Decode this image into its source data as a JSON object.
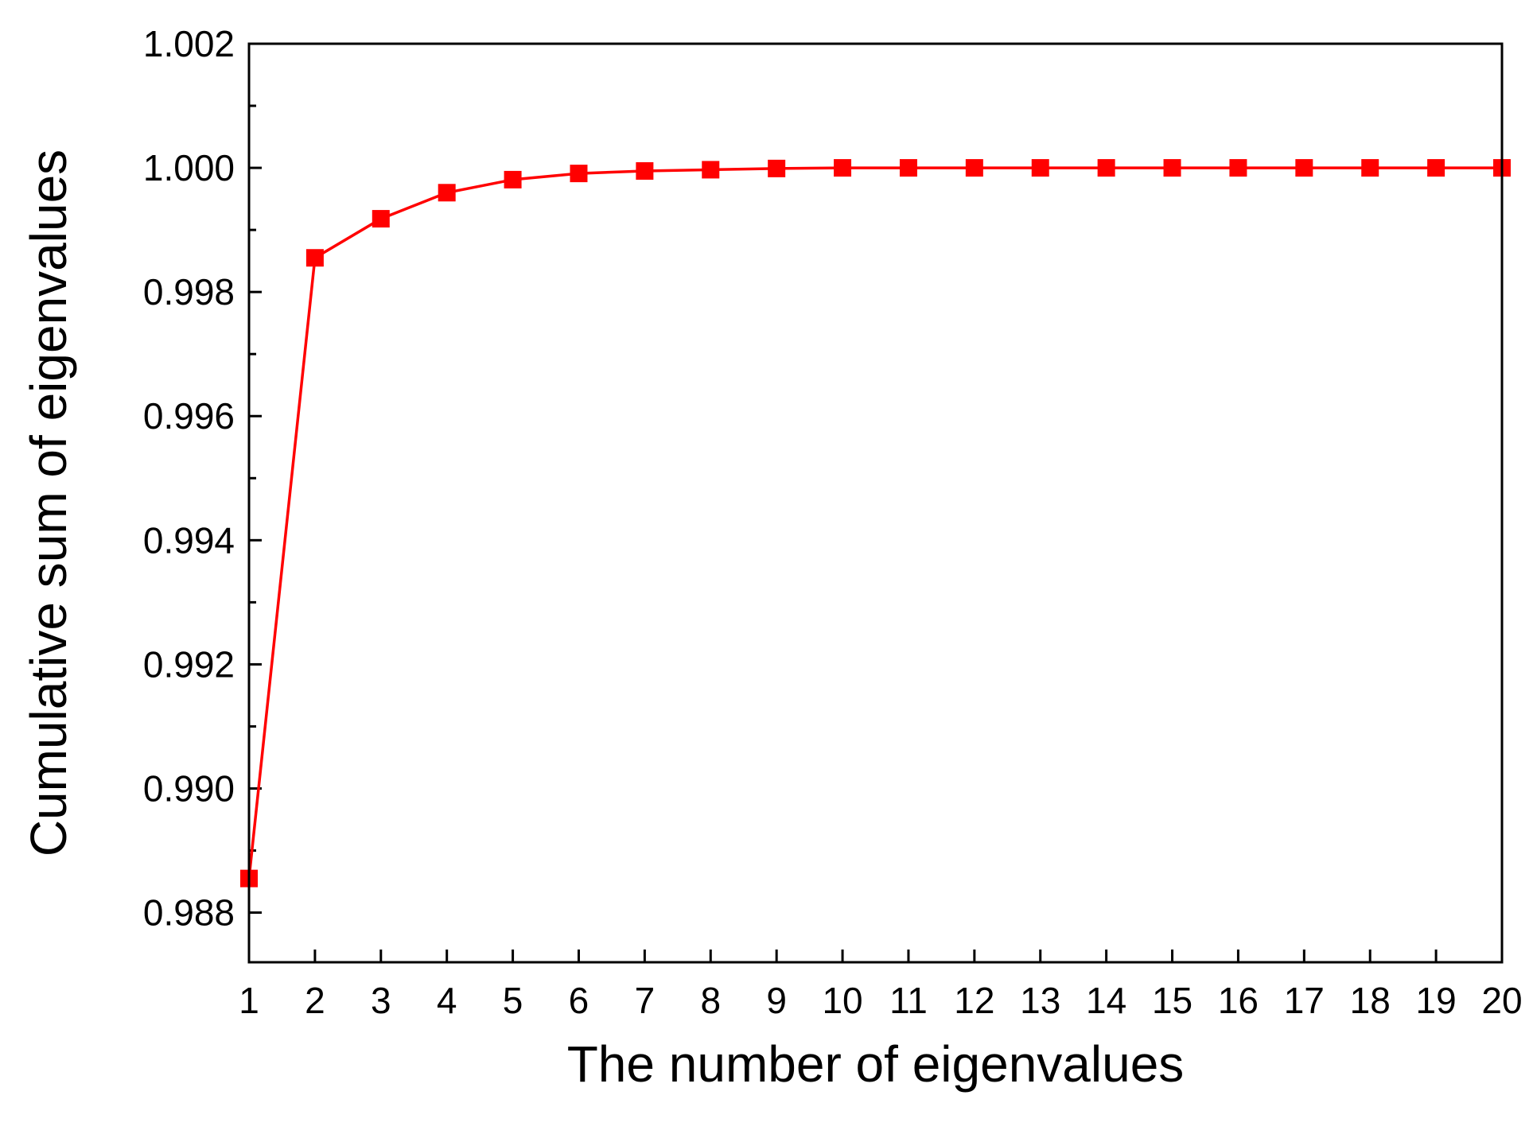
{
  "chart_data": {
    "type": "line",
    "title": "",
    "xlabel": "The number of eigenvalues",
    "ylabel": "Cumulative sum of eigenvalues",
    "x": [
      1,
      2,
      3,
      4,
      5,
      6,
      7,
      8,
      9,
      10,
      11,
      12,
      13,
      14,
      15,
      16,
      17,
      18,
      19,
      20
    ],
    "xticks": [
      "1",
      "2",
      "3",
      "4",
      "5",
      "6",
      "7",
      "8",
      "9",
      "10",
      "11",
      "12",
      "13",
      "14",
      "15",
      "16",
      "17",
      "18",
      "19",
      "20"
    ],
    "xlim": [
      1,
      20
    ],
    "ylim": [
      0.9872,
      1.002
    ],
    "yticks": [
      "0.988",
      "0.990",
      "0.992",
      "0.994",
      "0.996",
      "0.998",
      "1.000",
      "1.002"
    ],
    "grid": false,
    "legend": "none",
    "series": [
      {
        "values": [
          0.98855,
          0.99855,
          0.99918,
          0.9996,
          0.99981,
          0.99991,
          0.99995,
          0.99997,
          0.99999,
          1.0,
          1.0,
          1.0,
          1.0,
          1.0,
          1.0,
          1.0,
          1.0,
          1.0,
          1.0,
          1.0
        ],
        "color": "#ff0000",
        "marker": "square"
      }
    ]
  }
}
